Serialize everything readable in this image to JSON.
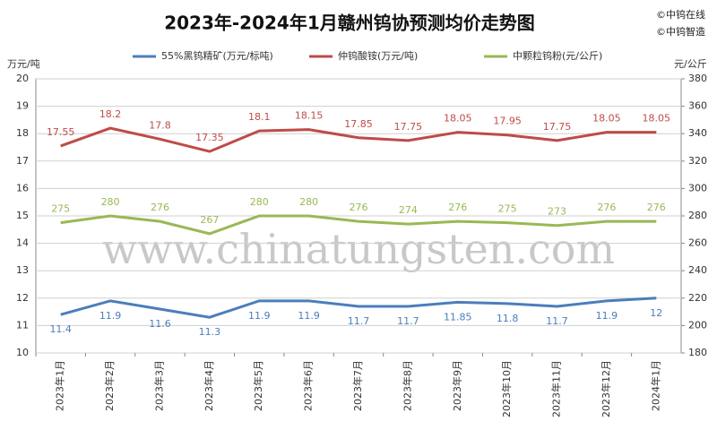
{
  "chart_data": {
    "type": "line",
    "title": "2023年-2024年1月赣州钨协预测均价走势图",
    "annotations": [
      "©中钨在线",
      "©中钨智造",
      "www.chinatungsten.com"
    ],
    "y_label": "万元/吨",
    "y2_label": "元/公斤",
    "categories": [
      "2023年1月",
      "2023年2月",
      "2023年3月",
      "2023年4月",
      "2023年5月",
      "2023年6月",
      "2023年7月",
      "2023年8月",
      "2023年9月",
      "2023年10月",
      "2023年11月",
      "2023年12月",
      "2024年1月"
    ],
    "series": [
      {
        "name": "55%黑钨精矿(万元/标吨)",
        "color": "#4a7ebb",
        "values": [
          11.4,
          11.9,
          11.6,
          11.3,
          11.9,
          11.9,
          11.7,
          11.7,
          11.85,
          11.8,
          11.7,
          11.9,
          12
        ]
      },
      {
        "name": "仲钨酸铵(万元/吨)",
        "color": "#be4b48",
        "values": [
          17.55,
          18.2,
          17.8,
          17.35,
          18.1,
          18.15,
          17.85,
          17.75,
          18.05,
          17.95,
          17.75,
          18.05,
          18.05
        ]
      },
      {
        "name": "中颗粒钨粉(元/公斤)",
        "color": "#98b954",
        "axis": "y2",
        "values": [
          275,
          280,
          276,
          267,
          280,
          280,
          276,
          274,
          276,
          275,
          273,
          276,
          276
        ]
      }
    ],
    "ylim": [
      10,
      20
    ],
    "yticks": [
      10,
      11,
      12,
      13,
      14,
      15,
      16,
      17,
      18,
      19,
      20
    ],
    "y2lim": [
      180,
      380
    ],
    "y2ticks": [
      180,
      200,
      220,
      240,
      260,
      280,
      300,
      320,
      340,
      360,
      380
    ],
    "grid": true
  }
}
